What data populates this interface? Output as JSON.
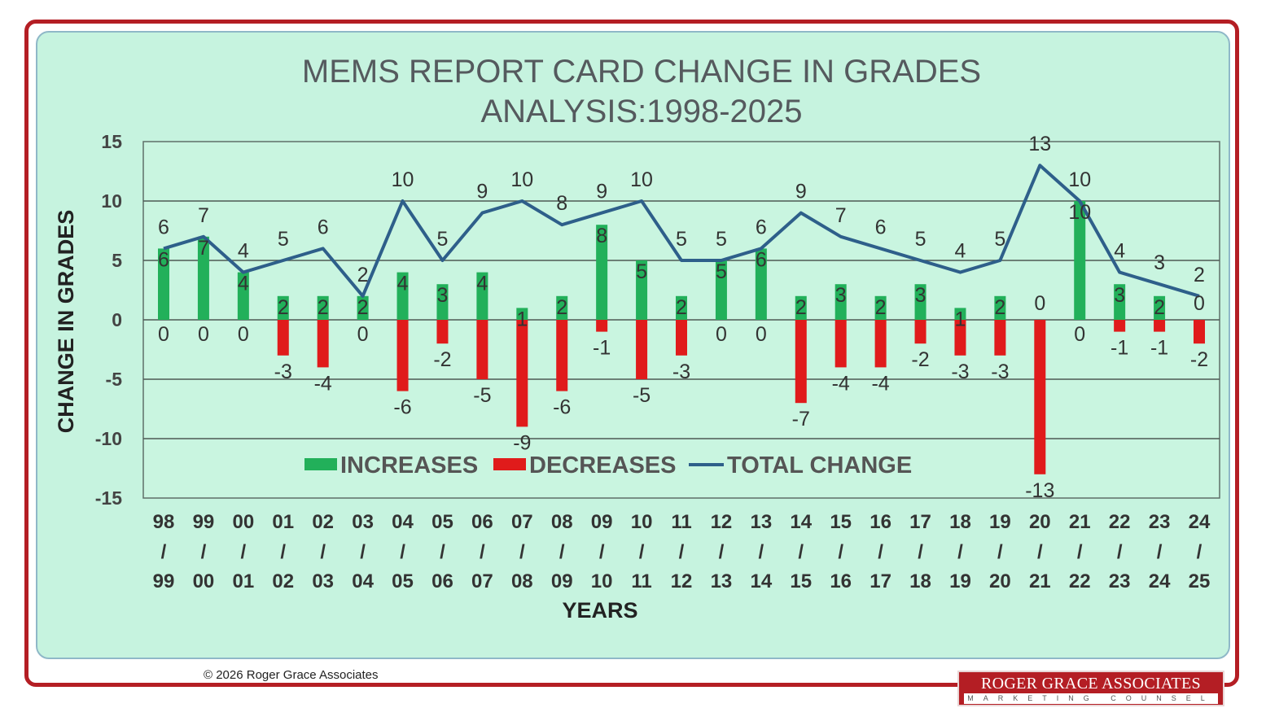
{
  "chart_data": {
    "type": "bar",
    "title_line1": "MEMS REPORT CARD CHANGE IN GRADES",
    "title_line2": "ANALYSIS:1998-2025",
    "xlabel": "YEARS",
    "ylabel": "CHANGE IN GRADES",
    "ylim": [
      -15,
      15
    ],
    "yticks": [
      15,
      10,
      5,
      0,
      -5,
      -10,
      -15
    ],
    "grid": true,
    "legend_placement": "bottom-left, inside plot",
    "categories": [
      {
        "top": "98",
        "sep": "/",
        "bottom": "99"
      },
      {
        "top": "99",
        "sep": "/",
        "bottom": "00"
      },
      {
        "top": "00",
        "sep": "/",
        "bottom": "01"
      },
      {
        "top": "01",
        "sep": "/",
        "bottom": "02"
      },
      {
        "top": "02",
        "sep": "/",
        "bottom": "03"
      },
      {
        "top": "03",
        "sep": "/",
        "bottom": "04"
      },
      {
        "top": "04",
        "sep": "/",
        "bottom": "05"
      },
      {
        "top": "05",
        "sep": "/",
        "bottom": "06"
      },
      {
        "top": "06",
        "sep": "/",
        "bottom": "07"
      },
      {
        "top": "07",
        "sep": "/",
        "bottom": "08"
      },
      {
        "top": "08",
        "sep": "/",
        "bottom": "09"
      },
      {
        "top": "09",
        "sep": "/",
        "bottom": "10"
      },
      {
        "top": "10",
        "sep": "/",
        "bottom": "11"
      },
      {
        "top": "11",
        "sep": "/",
        "bottom": "12"
      },
      {
        "top": "12",
        "sep": "/",
        "bottom": "13"
      },
      {
        "top": "13",
        "sep": "/",
        "bottom": "14"
      },
      {
        "top": "14",
        "sep": "/",
        "bottom": "15"
      },
      {
        "top": "15",
        "sep": "/",
        "bottom": "16"
      },
      {
        "top": "16",
        "sep": "/",
        "bottom": "17"
      },
      {
        "top": "17",
        "sep": "/",
        "bottom": "18"
      },
      {
        "top": "18",
        "sep": "/",
        "bottom": "19"
      },
      {
        "top": "19",
        "sep": "/",
        "bottom": "20"
      },
      {
        "top": "20",
        "sep": "/",
        "bottom": "21"
      },
      {
        "top": "21",
        "sep": "/",
        "bottom": "22"
      },
      {
        "top": "22",
        "sep": "/",
        "bottom": "23"
      },
      {
        "top": "23",
        "sep": "/",
        "bottom": "24"
      },
      {
        "top": "24",
        "sep": "/",
        "bottom": "25"
      }
    ],
    "series": [
      {
        "name": "INCREASES",
        "kind": "bar",
        "color": "#22b05a",
        "values": [
          6,
          7,
          4,
          2,
          2,
          2,
          4,
          3,
          4,
          1,
          2,
          8,
          5,
          2,
          5,
          6,
          2,
          3,
          2,
          3,
          1,
          2,
          0,
          10,
          3,
          2,
          0
        ]
      },
      {
        "name": "DECREASES",
        "kind": "bar",
        "color": "#e01b1b",
        "values": [
          0,
          0,
          0,
          -3,
          -4,
          0,
          -6,
          -2,
          -5,
          -9,
          -6,
          -1,
          -5,
          -3,
          0,
          0,
          -7,
          -4,
          -4,
          -2,
          -3,
          -3,
          -13,
          0,
          -1,
          -1,
          -2
        ]
      },
      {
        "name": "TOTAL CHANGE",
        "kind": "line",
        "color": "#2e5f8a",
        "values": [
          6,
          7,
          4,
          5,
          6,
          2,
          10,
          5,
          9,
          10,
          8,
          9,
          10,
          5,
          5,
          6,
          9,
          7,
          6,
          5,
          4,
          5,
          13,
          10,
          4,
          3,
          2
        ]
      }
    ]
  },
  "footer": {
    "copyright": "© 2026 Roger Grace Associates",
    "logo_name": "ROGER GRACE ASSOCIATES",
    "logo_tagline": "MARKETING COUNSEL"
  }
}
